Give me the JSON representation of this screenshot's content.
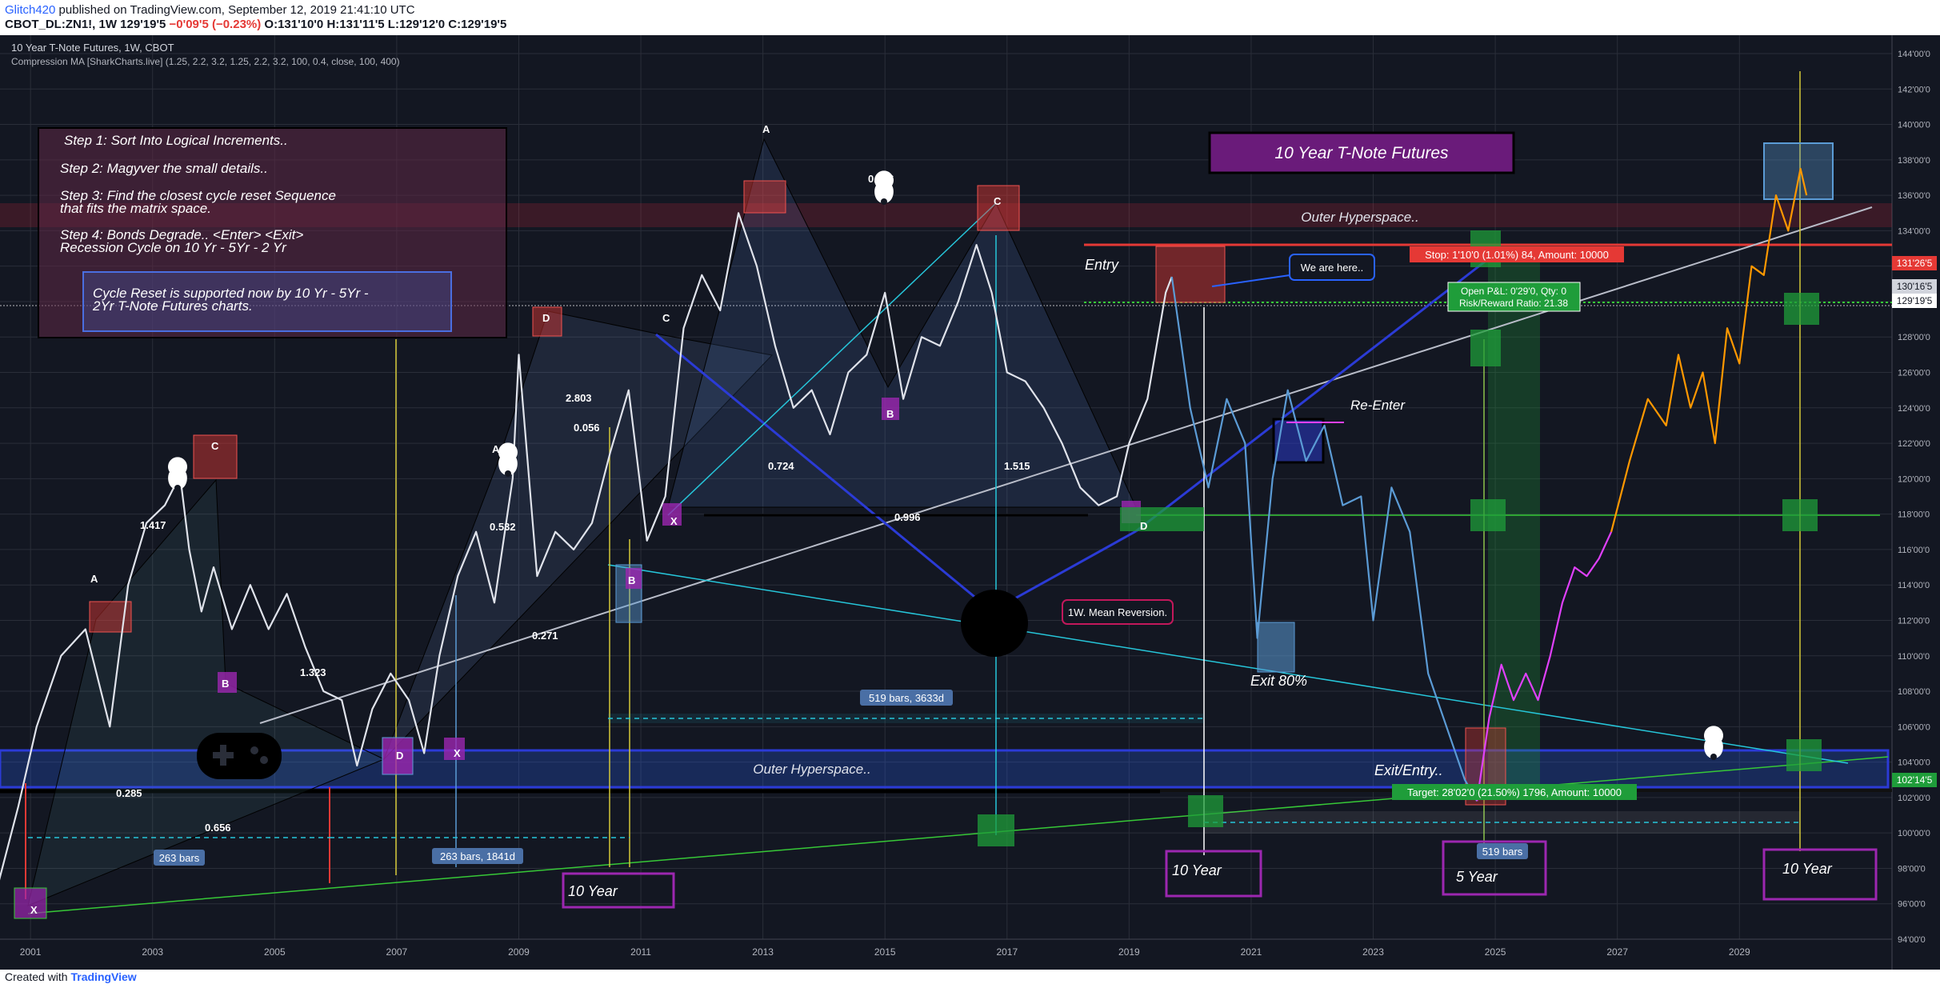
{
  "header": {
    "author": "Glitch420",
    "published": " published on TradingView.com, September 12, 2019 21:41:10 UTC",
    "symbol": "CBOT_DL:ZN1!, 1W",
    "last_price": "129'19'5",
    "change": "−0'09'5 (−0.23%)",
    "ohlc": "O:131'10'0 H:131'11'5 L:129'12'0 C:129'19'5"
  },
  "chart_title": "10 Year T-Note Futures, 1W, CBOT",
  "indicator_label": "Compression MA [SharkCharts.live] (1.25, 2.2, 3.2, 1.25, 2.2, 3.2, 100, 0.4, close, 100, 400)",
  "footer": {
    "created_with": "Created with",
    "brand": "TradingView"
  },
  "colors": {
    "background": "#131722",
    "price_white": "#e0e3eb",
    "projection_blue": "#5b9bd5",
    "projection_magenta": "#e040fb",
    "projection_orange": "#ff9800",
    "stop_red": "#e53935",
    "target_green": "#1f9d3a"
  },
  "notes": {
    "steps": [
      "Step 1: Sort Into Logical Increments..",
      "Step 2: Magyver the small details..",
      "Step 3: Find the closest cycle reset Sequence",
      "that fits the matrix space.",
      "Step 4: Bonds Degrade.. <Enter> <Exit>",
      "Recession Cycle on 10 Yr - 5Yr - 2 Yr"
    ],
    "cycle_reset": [
      "Cycle Reset is supported now by 10 Yr - 5Yr -",
      "2Yr T-Note Futures charts."
    ],
    "title_box": "10 Year T-Note Futures",
    "outer_hyperspace": "Outer Hyperspace..",
    "entry": "Entry",
    "we_are_here": "We are here..",
    "stop": "Stop: 1'10'0 (1.01%) 84, Amount: 10000",
    "open_pl": "Open P&L: 0'29'0, Qty: 0",
    "rr": "Risk/Reward Ratio: 21.38",
    "re_enter": "Re-Enter",
    "mean_reversion": "1W. Mean Reversion.",
    "exit80": "Exit 80%",
    "exit_entry": "Exit/Entry..",
    "target": "Target: 28'02'0 (21.50%) 1796, Amount: 10000",
    "ten_year": "10 Year",
    "five_year": "5 Year",
    "bars_a": "263 bars",
    "bars_b": "263 bars, 1841d",
    "bars_c": "519 bars, 3633d",
    "bars_d": "519 bars"
  },
  "pattern_labels": {
    "X": "X",
    "A": "A",
    "B": "B",
    "C": "C",
    "D": "D",
    "r1417": "1.417",
    "r1323": "1.323",
    "r0285": "0.285",
    "r0656": "0.656",
    "r0532": "0.532",
    "r0271": "0.271",
    "r2803": "2.803",
    "r0056": "0.056",
    "r0724": "0.724",
    "r0996": "0.996",
    "r0806": "0.806",
    "r1515": "1.515"
  },
  "price_tags": {
    "stop": "131'26'5",
    "entry": "130'16'5",
    "last": "129'19'5",
    "target": "102'14'5"
  },
  "chart_data": {
    "type": "line",
    "title": "10 Year T-Note Futures, 1W, CBOT",
    "x_range": [
      "2000-06",
      "2031-06"
    ],
    "ylim": [
      94,
      144
    ],
    "y_ticks": [
      "94'00'0",
      "96'00'0",
      "98'00'0",
      "100'00'0",
      "102'00'0",
      "104'00'0",
      "106'00'0",
      "108'00'0",
      "110'00'0",
      "112'00'0",
      "114'00'0",
      "116'00'0",
      "118'00'0",
      "120'00'0",
      "122'00'0",
      "124'00'0",
      "126'00'0",
      "128'00'0",
      "130'00'0",
      "132'00'0",
      "134'00'0",
      "136'00'0",
      "138'00'0",
      "140'00'0",
      "142'00'0",
      "144'00'0"
    ],
    "x_ticks": [
      "2001",
      "2003",
      "2005",
      "2007",
      "2009",
      "2011",
      "2013",
      "2015",
      "2017",
      "2019",
      "2021",
      "2023",
      "2025",
      "2027",
      "2029"
    ],
    "grid": true,
    "series": [
      {
        "color": "#e0e3eb",
        "x": [
          2000.4,
          2000.8,
          2001.1,
          2001.5,
          2001.9,
          2002.3,
          2002.6,
          2002.9,
          2003.2,
          2003.45,
          2003.6,
          2003.8,
          2004.0,
          2004.3,
          2004.6,
          2004.9,
          2005.2,
          2005.5,
          2005.8,
          2006.1,
          2006.35,
          2006.6,
          2006.9,
          2007.2,
          2007.45,
          2007.7,
          2008.0,
          2008.3,
          2008.6,
          2008.9,
          2009.0,
          2009.3,
          2009.6,
          2009.9,
          2010.2,
          2010.5,
          2010.8,
          2011.1,
          2011.4,
          2011.7,
          2012.0,
          2012.3,
          2012.6,
          2012.9,
          2013.2,
          2013.5,
          2013.8,
          2014.1,
          2014.4,
          2014.7,
          2015.0,
          2015.3,
          2015.6,
          2015.9,
          2016.2,
          2016.5,
          2016.75,
          2017.0,
          2017.3,
          2017.6,
          2017.9,
          2018.2,
          2018.5,
          2018.8,
          2019.0,
          2019.3,
          2019.6,
          2019.7
        ],
        "y": [
          96.2,
          101.5,
          106.0,
          110.0,
          111.5,
          106.0,
          114.0,
          117.5,
          118.5,
          120.2,
          116.0,
          112.5,
          115.0,
          111.5,
          114.0,
          111.5,
          113.5,
          110.5,
          108.0,
          107.5,
          103.8,
          107.0,
          109.0,
          107.5,
          104.5,
          110.0,
          114.5,
          117.0,
          113.0,
          120.0,
          127.0,
          114.5,
          117.0,
          116.0,
          117.5,
          121.5,
          125.0,
          116.5,
          119.0,
          128.5,
          131.5,
          129.5,
          135.0,
          132.0,
          127.5,
          124.0,
          125.0,
          122.5,
          126.0,
          127.0,
          130.5,
          124.5,
          128.0,
          127.5,
          130.0,
          133.2,
          130.5,
          126.0,
          125.5,
          124.0,
          122.0,
          119.5,
          118.5,
          119.0,
          122.0,
          124.5,
          130.5,
          131.4
        ]
      },
      {
        "color": "#5b9bd5",
        "x": [
          2019.7,
          2020.0,
          2020.3,
          2020.6,
          2020.9,
          2021.1,
          2021.35,
          2021.6,
          2021.9,
          2022.2,
          2022.5,
          2022.8,
          2023.0,
          2023.3,
          2023.6,
          2023.9,
          2024.2,
          2024.5,
          2024.7
        ],
        "y": [
          131.4,
          124.0,
          119.5,
          124.5,
          122.0,
          111.0,
          120.0,
          125.0,
          121.0,
          123.0,
          118.5,
          119.0,
          112.0,
          119.5,
          117.0,
          109.0,
          106.0,
          103.0,
          101.8
        ]
      },
      {
        "color": "#e040fb",
        "x": [
          2024.7,
          2024.9,
          2025.1,
          2025.3,
          2025.5,
          2025.7,
          2025.9,
          2026.1,
          2026.3,
          2026.5,
          2026.7,
          2026.9
        ],
        "y": [
          101.8,
          106.5,
          109.5,
          107.5,
          109.0,
          107.5,
          110.0,
          113.0,
          115.0,
          114.5,
          115.5,
          117.0
        ]
      },
      {
        "color": "#ff9800",
        "x": [
          2026.9,
          2027.2,
          2027.5,
          2027.8,
          2028.0,
          2028.2,
          2028.4,
          2028.6,
          2028.8,
          2029.0,
          2029.2,
          2029.4,
          2029.6,
          2029.8,
          2030.0,
          2030.1
        ],
        "y": [
          117.0,
          121.0,
          124.5,
          123.0,
          127.0,
          124.0,
          126.0,
          122.0,
          128.5,
          126.5,
          132.0,
          131.5,
          136.0,
          134.0,
          137.5,
          136.0
        ]
      }
    ]
  }
}
